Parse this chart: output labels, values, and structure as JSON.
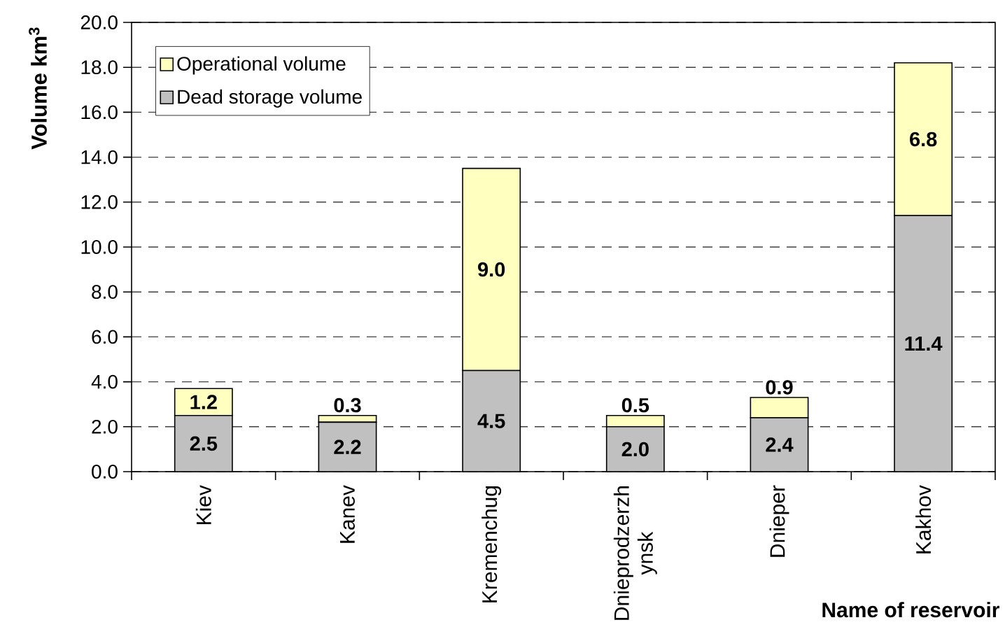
{
  "chart_data": {
    "type": "bar",
    "stacked": true,
    "categories": [
      "Kiev",
      "Kanev",
      "Kremenchug",
      "Dnieprodzerzh ynsk",
      "Dnieper",
      "Kakhov"
    ],
    "series": [
      {
        "name": "Dead storage volume",
        "color": "#c0c0c0",
        "values": [
          2.5,
          2.2,
          4.5,
          2.0,
          2.4,
          11.4
        ],
        "value_labels": [
          "2.5",
          "2.2",
          "4.5",
          "2.0",
          "2.4",
          "11.4"
        ]
      },
      {
        "name": "Operational volume",
        "color": "#ffffc0",
        "values": [
          1.2,
          0.3,
          9.0,
          0.5,
          0.9,
          6.8
        ],
        "value_labels": [
          "1.2",
          "0.3",
          "9.0",
          "0.5",
          "0.9",
          "6.8"
        ]
      }
    ],
    "ylabel": "Volume km$^{3}$",
    "xlabel": "Name of reservoir",
    "ylim": [
      0,
      20
    ],
    "yticks": [
      {
        "value": 0,
        "label": "0.0"
      },
      {
        "value": 2,
        "label": "2.0"
      },
      {
        "value": 4,
        "label": "4.0"
      },
      {
        "value": 6,
        "label": "6.0"
      },
      {
        "value": 8,
        "label": "8.0"
      },
      {
        "value": 10,
        "label": "10.0"
      },
      {
        "value": 12,
        "label": "12.0"
      },
      {
        "value": 14,
        "label": "14.0"
      },
      {
        "value": 16,
        "label": "16.0"
      },
      {
        "value": 18,
        "label": "18.0"
      },
      {
        "value": 20,
        "label": "20.0"
      }
    ],
    "grid": "y",
    "legend": "top left"
  }
}
